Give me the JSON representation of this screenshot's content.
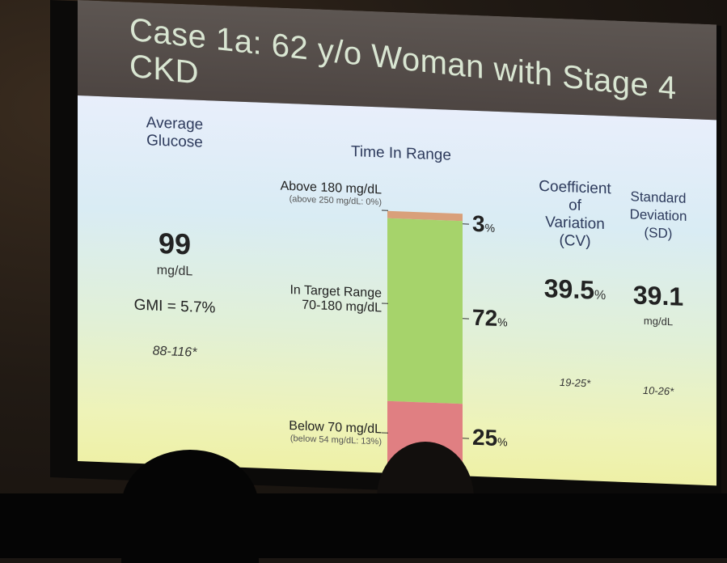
{
  "slide": {
    "title": "Case 1a: 62 y/o Woman with Stage 4 CKD",
    "avg_glucose": {
      "header_line1": "Average",
      "header_line2": "Glucose",
      "value": "99",
      "unit": "mg/dL",
      "gmi": "GMI = 5.7%",
      "range": "88-116*"
    },
    "tir": {
      "header": "Time In Range",
      "above_label": "Above 180 mg/dL",
      "above_sub": "(above 250 mg/dL: 0%)",
      "above_pct": "3",
      "target_label": "In Target Range",
      "target_sub": "70-180 mg/dL",
      "target_pct": "72",
      "below_label": "Below 70 mg/dL",
      "below_sub": "(below 54 mg/dL: 13%)",
      "below_pct": "25",
      "pct_sign": "%"
    },
    "cv": {
      "header_line1": "Coefficient",
      "header_line2": "of",
      "header_line3": "Variation",
      "header_line4": "(CV)",
      "value": "39.5",
      "unit": "%",
      "range": "19-25*"
    },
    "sd": {
      "header_line1": "Standard",
      "header_line2": "Deviation",
      "header_line3": "(SD)",
      "value": "39.1",
      "unit": "mg/dL",
      "range": "10-26*"
    },
    "colors": {
      "above": "#d9a07a",
      "target": "#a6d36b",
      "below": "#e07f82"
    }
  }
}
